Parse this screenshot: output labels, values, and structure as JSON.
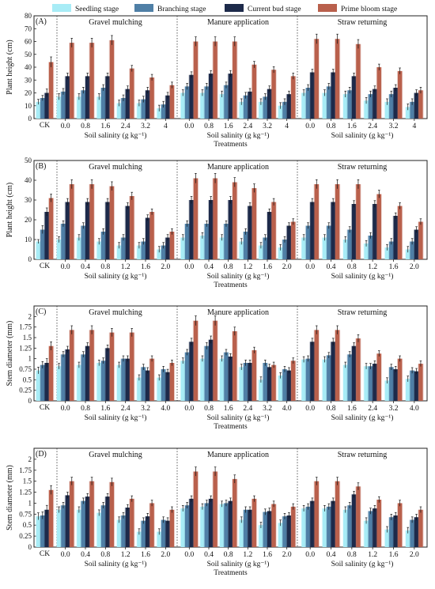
{
  "legend": [
    {
      "label": "Seedling stage",
      "color": "#a8ecf6"
    },
    {
      "label": "Branching stage",
      "color": "#4f7fa6"
    },
    {
      "label": "Current bud stage",
      "color": "#1d2a4a"
    },
    {
      "label": "Prime bloom stage",
      "color": "#b9604c"
    }
  ],
  "colors": {
    "err_bar": "#111111",
    "frame": "#222222",
    "bg": "#ffffff"
  },
  "chart_data": [
    {
      "type": "bar",
      "panel": "(A)",
      "ylabel": "Plant height (cm)",
      "ylim": [
        0,
        80
      ],
      "yticks": [
        0,
        10,
        20,
        30,
        40,
        50,
        60,
        70,
        80
      ],
      "ck": {
        "label": "CK",
        "values": [
          13,
          16,
          20,
          44
        ],
        "errors": [
          2,
          2,
          3,
          4
        ]
      },
      "xlabel": "Treatments",
      "groups": [
        {
          "name": "Gravel mulching",
          "xlabel": "Soil salinity (g kg⁻¹)",
          "categories": [
            "0.0",
            "0.8",
            "1.6",
            "2.4",
            "3.2",
            "4"
          ],
          "series": [
            [
              17,
              17,
              17,
              12,
              12,
              8
            ],
            [
              21,
              22,
              24,
              16,
              15,
              11
            ],
            [
              33,
              33,
              33,
              23,
              22,
              18
            ],
            [
              59,
              59,
              61,
              39,
              32,
              26
            ]
          ]
        },
        {
          "name": "Manure application",
          "xlabel": "Soil salinity (g kg⁻¹)",
          "categories": [
            "0.0",
            "0.8",
            "1.6",
            "2.4",
            "3.2",
            "4"
          ],
          "series": [
            [
              20,
              20,
              19,
              13,
              13,
              10
            ],
            [
              25,
              25,
              26,
              18,
              17,
              13
            ],
            [
              34,
              35,
              35,
              21,
              23,
              19
            ],
            [
              60,
              60,
              60,
              42,
              38,
              33
            ]
          ]
        },
        {
          "name": "Straw returning",
          "xlabel": "Soil salinity (g kg⁻¹)",
          "categories": [
            "0.0",
            "0.8",
            "1.6",
            "2.4",
            "3.2",
            "4"
          ],
          "series": [
            [
              20,
              20,
              19,
              14,
              13,
              9
            ],
            [
              24,
              25,
              22,
              19,
              19,
              13
            ],
            [
              36,
              36,
              33,
              23,
              24,
              20
            ],
            [
              62,
              62,
              58,
              40,
              37,
              22
            ]
          ]
        }
      ]
    },
    {
      "type": "bar",
      "panel": "(B)",
      "ylabel": "Plant height (cm)",
      "ylim": [
        0,
        50
      ],
      "yticks": [
        0,
        10,
        20,
        30,
        40,
        50
      ],
      "ck": {
        "label": "CK",
        "values": [
          9,
          15,
          24,
          31
        ],
        "errors": [
          1,
          2,
          2,
          2
        ]
      },
      "xlabel": "Treatments",
      "groups": [
        {
          "name": "Gravel mulching",
          "xlabel": "Soil salinity (g kg⁻¹)",
          "categories": [
            "0.0",
            "0.4",
            "0.8",
            "1.2",
            "1.6",
            "2.0"
          ],
          "series": [
            [
              10,
              11,
              9,
              7,
              7,
              5
            ],
            [
              18,
              17,
              14,
              11,
              9,
              7
            ],
            [
              29,
              29,
              29,
              27,
              21,
              11
            ],
            [
              38,
              38,
              37,
              32,
              24,
              14
            ]
          ]
        },
        {
          "name": "Manure application",
          "xlabel": "Soil salinity (g kg⁻¹)",
          "categories": [
            "0.0",
            "0.4",
            "0.8",
            "1.2",
            "1.6",
            "2.0"
          ],
          "series": [
            [
              11,
              12,
              11,
              9,
              7,
              6
            ],
            [
              18,
              18,
              18,
              14,
              11,
              10
            ],
            [
              30,
              30,
              30,
              27,
              24,
              17
            ],
            [
              41,
              41,
              39,
              36,
              29,
              19
            ]
          ]
        },
        {
          "name": "Straw returning",
          "xlabel": "Soil salinity (g kg⁻¹)",
          "categories": [
            "0.0",
            "0.4",
            "0.8",
            "1.2",
            "1.6",
            "2.0"
          ],
          "series": [
            [
              11,
              11,
              10,
              8,
              6,
              5
            ],
            [
              17,
              17,
              15,
              12,
              9,
              9
            ],
            [
              29,
              29,
              28,
              28,
              22,
              15
            ],
            [
              38,
              38,
              38,
              33,
              27,
              19
            ]
          ]
        }
      ]
    },
    {
      "type": "bar",
      "panel": "(C)",
      "ylabel": "Stem diameter (mm)",
      "ylim": [
        0,
        2.25
      ],
      "yticks": [
        0,
        0.25,
        0.5,
        0.75,
        1.0,
        1.25,
        1.5,
        1.75,
        2.0
      ],
      "ck": {
        "label": "CK",
        "values": [
          0.72,
          0.85,
          0.9,
          1.3
        ],
        "errors": [
          0.08,
          0.08,
          0.1,
          0.1
        ]
      },
      "xlabel": "Treatments",
      "groups": [
        {
          "name": "Gravel mulching",
          "xlabel": "Soil salinity (g kg⁻¹)",
          "categories": [
            "0.0",
            "0.8",
            "1.6",
            "2.4",
            "3.2",
            "4.0"
          ],
          "series": [
            [
              0.82,
              0.85,
              0.9,
              0.85,
              0.55,
              0.55
            ],
            [
              1.1,
              1.1,
              0.95,
              1.0,
              0.8,
              0.75
            ],
            [
              1.22,
              1.3,
              1.25,
              1.0,
              0.72,
              0.68
            ],
            [
              1.68,
              1.68,
              1.62,
              1.62,
              1.0,
              0.9
            ]
          ]
        },
        {
          "name": "Manure application",
          "xlabel": "Soil salinity (g kg⁻¹)",
          "categories": [
            "0.0",
            "0.8",
            "1.6",
            "2.4",
            "3.2",
            "4.0"
          ],
          "series": [
            [
              0.95,
              1.0,
              1.0,
              0.8,
              0.5,
              0.6
            ],
            [
              1.15,
              1.3,
              1.15,
              0.9,
              0.9,
              0.75
            ],
            [
              1.4,
              1.45,
              1.05,
              0.9,
              0.8,
              0.72
            ],
            [
              1.9,
              1.9,
              1.65,
              1.2,
              0.85,
              0.95
            ]
          ]
        },
        {
          "name": "Straw returning",
          "xlabel": "Soil salinity (g kg⁻¹)",
          "categories": [
            "0.0",
            "0.8",
            "1.6",
            "2.4",
            "3.2",
            "4.0"
          ],
          "series": [
            [
              0.98,
              0.98,
              0.85,
              0.82,
              0.48,
              0.52
            ],
            [
              1.0,
              1.08,
              1.1,
              0.82,
              0.8,
              0.72
            ],
            [
              1.4,
              1.4,
              1.3,
              0.88,
              0.75,
              0.7
            ],
            [
              1.68,
              1.68,
              1.48,
              1.12,
              1.0,
              0.88
            ]
          ]
        }
      ]
    },
    {
      "type": "bar",
      "panel": "(D)",
      "ylabel": "Stem diameter (mm)",
      "ylim": [
        0,
        2.25
      ],
      "yticks": [
        0,
        0.25,
        0.5,
        0.75,
        1.0,
        1.25,
        1.5,
        1.75,
        2.0
      ],
      "ck": {
        "label": "CK",
        "values": [
          0.7,
          0.72,
          0.85,
          1.3
        ],
        "errors": [
          0.08,
          0.08,
          0.1,
          0.1
        ]
      },
      "xlabel": "Treatments",
      "groups": [
        {
          "name": "Gravel mulching",
          "xlabel": "Soil salinity (g kg⁻¹)",
          "categories": [
            "0.0",
            "0.4",
            "0.8",
            "1.2",
            "1.6",
            "2.0"
          ],
          "series": [
            [
              0.85,
              0.85,
              0.78,
              0.62,
              0.35,
              0.35
            ],
            [
              0.95,
              1.05,
              0.95,
              0.72,
              0.6,
              0.62
            ],
            [
              1.18,
              1.15,
              1.15,
              0.9,
              0.7,
              0.6
            ],
            [
              1.5,
              1.5,
              1.48,
              1.1,
              1.0,
              0.85
            ]
          ]
        },
        {
          "name": "Manure application",
          "xlabel": "Soil salinity (g kg⁻¹)",
          "categories": [
            "0.0",
            "0.4",
            "0.8",
            "1.2",
            "1.6",
            "2.0"
          ],
          "series": [
            [
              0.88,
              0.92,
              0.98,
              0.62,
              0.5,
              0.55
            ],
            [
              0.95,
              1.0,
              1.0,
              0.85,
              0.8,
              0.7
            ],
            [
              1.1,
              1.1,
              1.05,
              0.85,
              0.82,
              0.72
            ],
            [
              1.72,
              1.72,
              1.55,
              1.1,
              0.98,
              0.92
            ]
          ]
        },
        {
          "name": "Straw returning",
          "xlabel": "Soil salinity (g kg⁻¹)",
          "categories": [
            "0.0",
            "0.4",
            "0.8",
            "1.2",
            "1.6",
            "2.0"
          ],
          "series": [
            [
              0.88,
              0.88,
              0.85,
              0.6,
              0.4,
              0.38
            ],
            [
              0.92,
              0.92,
              0.95,
              0.82,
              0.68,
              0.62
            ],
            [
              1.05,
              1.05,
              1.2,
              0.88,
              0.72,
              0.68
            ],
            [
              1.5,
              1.5,
              1.38,
              1.08,
              1.0,
              0.85
            ]
          ]
        }
      ]
    }
  ]
}
